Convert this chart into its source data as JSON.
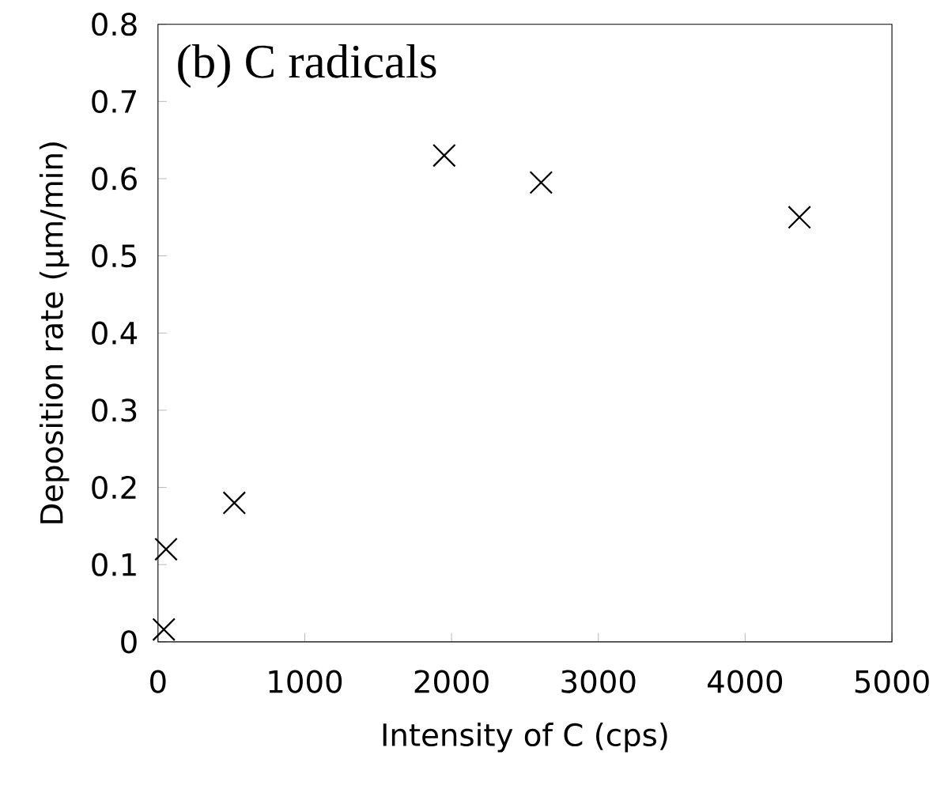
{
  "chart_data": {
    "type": "scatter",
    "xlabel": "Intensity of C (cps)",
    "ylabel": "Deposition rate (μm/min)",
    "annotations": [
      "(b) C radicals"
    ],
    "x": [
      40,
      55,
      520,
      1950,
      2610,
      4370
    ],
    "values": [
      0.016,
      0.12,
      0.18,
      0.63,
      0.595,
      0.55
    ],
    "color": "#000000",
    "marker": "cross",
    "xlim": [
      0,
      5000
    ],
    "ylim": [
      0,
      0.8
    ],
    "xticks": [
      0,
      1000,
      2000,
      3000,
      4000,
      5000
    ],
    "yticks": [
      0,
      0.1,
      0.2,
      0.3,
      0.4,
      0.5,
      0.6,
      0.7,
      0.8
    ],
    "grid": false
  }
}
